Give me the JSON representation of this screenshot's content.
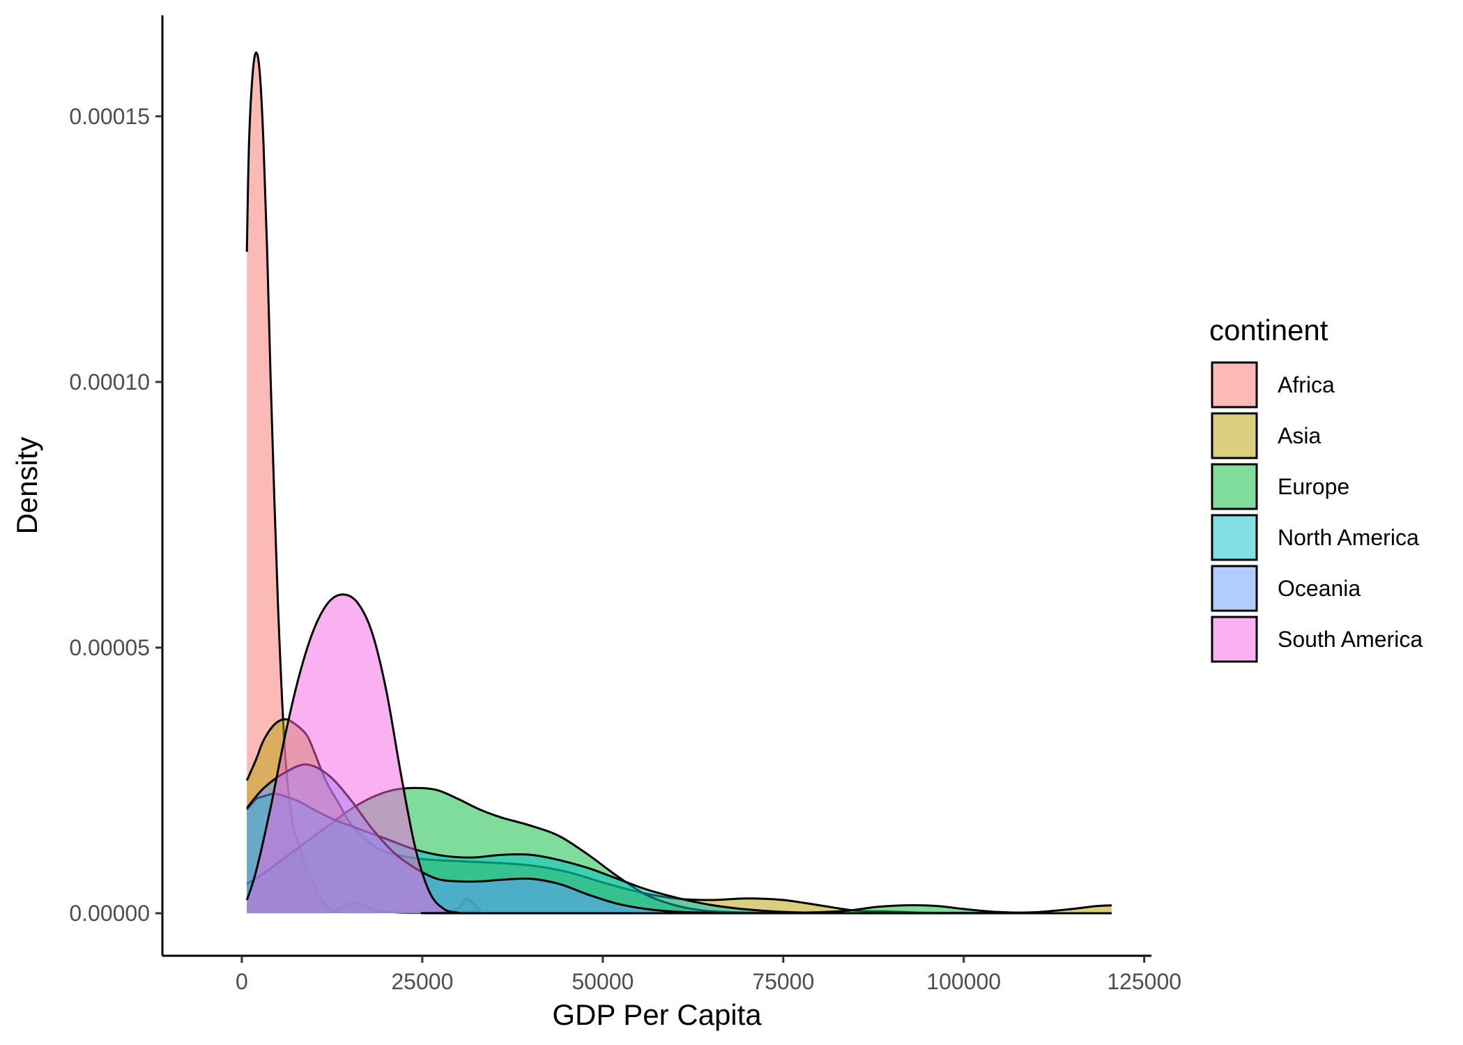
{
  "chart_data": {
    "type": "area",
    "subtype": "density",
    "xlabel": "GDP Per Capita",
    "ylabel": "Density",
    "xlim": [
      -11000,
      126000
    ],
    "ylim": [
      -8e-06,
      0.000169
    ],
    "x_ticks": [
      {
        "value": 0,
        "label": "0"
      },
      {
        "value": 25000,
        "label": "25000"
      },
      {
        "value": 50000,
        "label": "50000"
      },
      {
        "value": 75000,
        "label": "75000"
      },
      {
        "value": 100000,
        "label": "100000"
      },
      {
        "value": 125000,
        "label": "125000"
      }
    ],
    "y_ticks": [
      {
        "value": 0,
        "label": "0.00000"
      },
      {
        "value": 5e-05,
        "label": "0.00005"
      },
      {
        "value": 0.0001,
        "label": "0.00010"
      },
      {
        "value": 0.00015,
        "label": "0.00015"
      }
    ],
    "grid": false,
    "legend": {
      "title": "continent",
      "position": "right"
    },
    "fill_opacity": 0.5,
    "outline_color": "#000000",
    "series": [
      {
        "name": "Africa",
        "color": "#F8766D",
        "points": [
          [
            700,
            0.0001245
          ],
          [
            1000,
            0.000145
          ],
          [
            1500,
            0.000158
          ],
          [
            2000,
            0.000162
          ],
          [
            2500,
            0.000158
          ],
          [
            3000,
            0.000145
          ],
          [
            3500,
            0.000125
          ],
          [
            4000,
            0.0001
          ],
          [
            5000,
            5.85e-05
          ],
          [
            6000,
            3e-05
          ],
          [
            7000,
            1.75e-05
          ],
          [
            8000,
            1.25e-05
          ],
          [
            9000,
            8.5e-06
          ],
          [
            10000,
            5.5e-06
          ],
          [
            11000,
            2.5e-06
          ],
          [
            12000,
            1e-06
          ],
          [
            13000,
            5e-07
          ],
          [
            14000,
            1.2e-06
          ],
          [
            15000,
            1.8e-06
          ],
          [
            16000,
            2e-06
          ],
          [
            17000,
            1.5e-06
          ],
          [
            18000,
            8e-07
          ],
          [
            20000,
            3e-07
          ],
          [
            24000,
            1e-07
          ],
          [
            28000,
            3e-07
          ],
          [
            30000,
            1e-06
          ],
          [
            31000,
            2.7e-06
          ],
          [
            32000,
            2e-06
          ],
          [
            33000,
            5e-07
          ],
          [
            35000,
            0
          ],
          [
            120500,
            0
          ]
        ]
      },
      {
        "name": "Asia",
        "color": "#B79F00",
        "points": [
          [
            700,
            2.5e-05
          ],
          [
            2000,
            2.9e-05
          ],
          [
            3000,
            3.25e-05
          ],
          [
            4500,
            3.55e-05
          ],
          [
            6000,
            3.65e-05
          ],
          [
            7500,
            3.55e-05
          ],
          [
            9000,
            3.35e-05
          ],
          [
            10000,
            3.05e-05
          ],
          [
            11000,
            2.7e-05
          ],
          [
            12000,
            2.4e-05
          ],
          [
            13500,
            2.05e-05
          ],
          [
            15000,
            1.7e-05
          ],
          [
            17500,
            1.35e-05
          ],
          [
            20000,
            1.15e-05
          ],
          [
            25000,
            1.02e-05
          ],
          [
            30000,
            9.8e-06
          ],
          [
            35000,
            9.5e-06
          ],
          [
            40000,
            9e-06
          ],
          [
            45000,
            7.8e-06
          ],
          [
            50000,
            5.8e-06
          ],
          [
            55000,
            4e-06
          ],
          [
            60000,
            2.8e-06
          ],
          [
            65000,
            2.5e-06
          ],
          [
            70000,
            2.8e-06
          ],
          [
            75000,
            2.5e-06
          ],
          [
            80000,
            1.5e-06
          ],
          [
            85000,
            5e-07
          ],
          [
            90000,
            3e-07
          ],
          [
            95000,
            1e-07
          ],
          [
            100000,
            1e-07
          ],
          [
            105000,
            1e-07
          ],
          [
            110000,
            2e-07
          ],
          [
            115000,
            8e-07
          ],
          [
            118000,
            1.3e-06
          ],
          [
            120500,
            1.5e-06
          ]
        ]
      },
      {
        "name": "Europe",
        "color": "#00BA38",
        "points": [
          [
            700,
            5.5e-06
          ],
          [
            3000,
            7.5e-06
          ],
          [
            6000,
            1.05e-05
          ],
          [
            9000,
            1.35e-05
          ],
          [
            12000,
            1.65e-05
          ],
          [
            15000,
            1.95e-05
          ],
          [
            18000,
            2.18e-05
          ],
          [
            21000,
            2.32e-05
          ],
          [
            24000,
            2.36e-05
          ],
          [
            27000,
            2.32e-05
          ],
          [
            30000,
            2.15e-05
          ],
          [
            33000,
            1.95e-05
          ],
          [
            36000,
            1.8e-05
          ],
          [
            40000,
            1.65e-05
          ],
          [
            44000,
            1.45e-05
          ],
          [
            48000,
            1.1e-05
          ],
          [
            52000,
            7e-06
          ],
          [
            56000,
            3.5e-06
          ],
          [
            60000,
            1.5e-06
          ],
          [
            64000,
            5e-07
          ],
          [
            68000,
            2e-07
          ],
          [
            72000,
            1e-07
          ],
          [
            76000,
            1e-07
          ],
          [
            80000,
            2e-07
          ],
          [
            84000,
            5e-07
          ],
          [
            88000,
            1.2e-06
          ],
          [
            92000,
            1.5e-06
          ],
          [
            96000,
            1.4e-06
          ],
          [
            100000,
            8e-07
          ],
          [
            104000,
            3e-07
          ],
          [
            108000,
            1e-07
          ],
          [
            112000,
            0
          ],
          [
            120500,
            0
          ]
        ]
      },
      {
        "name": "North America",
        "color": "#00BFC4",
        "points": [
          [
            700,
            1.95e-05
          ],
          [
            2000,
            2.15e-05
          ],
          [
            3000,
            2.2e-05
          ],
          [
            4500,
            2.25e-05
          ],
          [
            6000,
            2.2e-05
          ],
          [
            8000,
            2.1e-05
          ],
          [
            10000,
            1.95e-05
          ],
          [
            13000,
            1.75e-05
          ],
          [
            16000,
            1.6e-05
          ],
          [
            20000,
            1.4e-05
          ],
          [
            24000,
            1.2e-05
          ],
          [
            28000,
            1.08e-05
          ],
          [
            32000,
            1.05e-05
          ],
          [
            36000,
            1.1e-05
          ],
          [
            40000,
            1.1e-05
          ],
          [
            44000,
            1e-05
          ],
          [
            48000,
            8.5e-06
          ],
          [
            52000,
            6.5e-06
          ],
          [
            56000,
            4.5e-06
          ],
          [
            60000,
            3e-06
          ],
          [
            64000,
            1.8e-06
          ],
          [
            68000,
            1e-06
          ],
          [
            72000,
            5e-07
          ],
          [
            76000,
            2e-07
          ],
          [
            80000,
            1e-07
          ],
          [
            85000,
            0
          ],
          [
            120500,
            0
          ]
        ]
      },
      {
        "name": "Oceania",
        "color": "#619CFF",
        "points": [
          [
            700,
            1.98e-05
          ],
          [
            3000,
            2.35e-05
          ],
          [
            6000,
            2.65e-05
          ],
          [
            9000,
            2.8e-05
          ],
          [
            12000,
            2.6e-05
          ],
          [
            15000,
            2.15e-05
          ],
          [
            18000,
            1.6e-05
          ],
          [
            21000,
            1.15e-05
          ],
          [
            24000,
            8.5e-06
          ],
          [
            27000,
            6.5e-06
          ],
          [
            30000,
            6e-06
          ],
          [
            33000,
            6e-06
          ],
          [
            36000,
            6.3e-06
          ],
          [
            40000,
            6.5e-06
          ],
          [
            44000,
            5.5e-06
          ],
          [
            48000,
            3.5e-06
          ],
          [
            52000,
            1.8e-06
          ],
          [
            56000,
            8e-07
          ],
          [
            60000,
            3e-07
          ],
          [
            65000,
            1e-07
          ],
          [
            70000,
            0
          ],
          [
            120500,
            0
          ]
        ]
      },
      {
        "name": "South America",
        "color": "#F564E3",
        "points": [
          [
            700,
            2.5e-06
          ],
          [
            2000,
            8e-06
          ],
          [
            4000,
            2e-05
          ],
          [
            6000,
            3.35e-05
          ],
          [
            8000,
            4.5e-05
          ],
          [
            10000,
            5.35e-05
          ],
          [
            12000,
            5.85e-05
          ],
          [
            14000,
            6e-05
          ],
          [
            16000,
            5.85e-05
          ],
          [
            18000,
            5.3e-05
          ],
          [
            20000,
            4.2e-05
          ],
          [
            22000,
            2.65e-05
          ],
          [
            24000,
            1.25e-05
          ],
          [
            26000,
            4e-06
          ],
          [
            28000,
            8e-07
          ],
          [
            30000,
            1e-07
          ],
          [
            32000,
            0
          ],
          [
            120500,
            0
          ]
        ]
      }
    ]
  }
}
